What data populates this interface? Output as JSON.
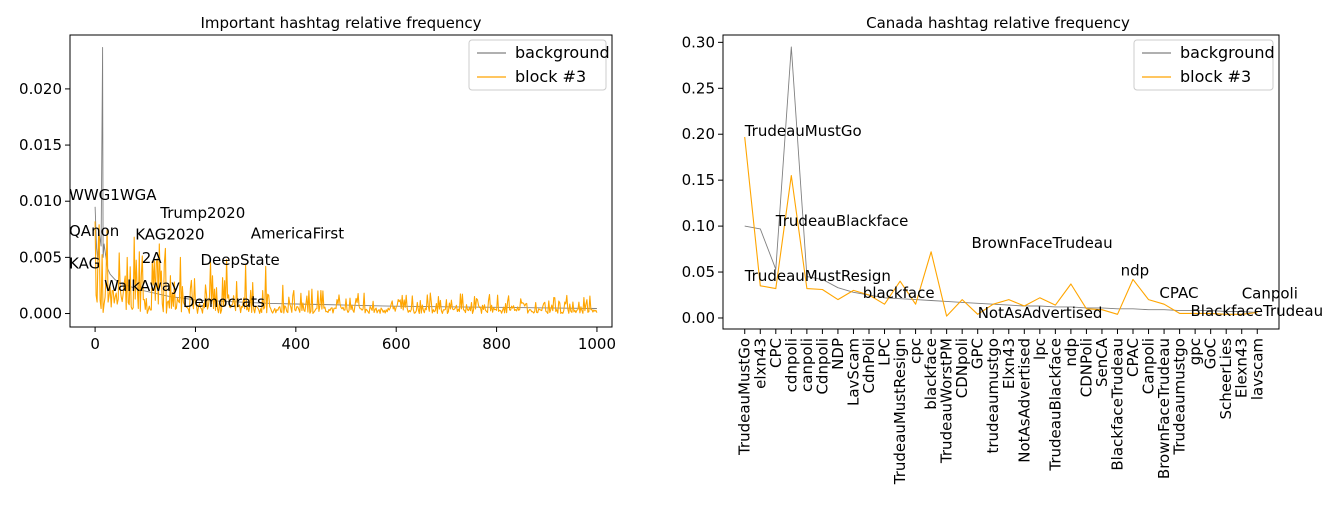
{
  "colors": {
    "background": "#808080",
    "block": "#ffa500"
  },
  "chart_data": [
    {
      "type": "line",
      "title": "Important hashtag relative frequency",
      "xlabel": "",
      "ylabel": "",
      "xlim": [
        -50,
        1030
      ],
      "ylim": [
        -0.0012,
        0.0248
      ],
      "xticks": [
        0,
        200,
        400,
        600,
        800,
        1000
      ],
      "xtick_labels": [
        "0",
        "200",
        "400",
        "600",
        "800",
        "1000"
      ],
      "yticks": [
        0.0,
        0.005,
        0.01,
        0.015,
        0.02
      ],
      "ytick_labels": [
        "0.000",
        "0.005",
        "0.010",
        "0.015",
        "0.020"
      ],
      "grid": false,
      "legend": "top-right",
      "series": [
        {
          "name": "background",
          "color": "#808080",
          "x": [
            0,
            3,
            6,
            9,
            12,
            15,
            16,
            18,
            21,
            25,
            30,
            40,
            50,
            70,
            90,
            110,
            130,
            150,
            170,
            200,
            250,
            300,
            350,
            400,
            450,
            500,
            550,
            600,
            700,
            800,
            900,
            1000
          ],
          "y": [
            0.0095,
            0.0058,
            0.0045,
            0.007,
            0.006,
            0.0237,
            0.005,
            0.0062,
            0.0052,
            0.004,
            0.0035,
            0.003,
            0.0027,
            0.0024,
            0.0021,
            0.0019,
            0.0017,
            0.0015,
            0.0014,
            0.0012,
            0.0011,
            0.001,
            0.0009,
            0.00085,
            0.0008,
            0.00075,
            0.0007,
            0.00065,
            0.0006,
            0.00055,
            0.0005,
            0.00045
          ]
        },
        {
          "name": "block #3",
          "color": "#ffa500",
          "x": [],
          "y": []
        }
      ],
      "annotations": [
        {
          "text": "WWG1WGA",
          "x": -52,
          "y": 0.0101
        },
        {
          "text": "Trump2020",
          "x": 130,
          "y": 0.0085
        },
        {
          "text": "QAnon",
          "x": -52,
          "y": 0.0069
        },
        {
          "text": "KAG2020",
          "x": 80,
          "y": 0.0066
        },
        {
          "text": "AmericaFirst",
          "x": 310,
          "y": 0.0067
        },
        {
          "text": "2A",
          "x": 93,
          "y": 0.0045
        },
        {
          "text": "DeepState",
          "x": 210,
          "y": 0.0043
        },
        {
          "text": "KAG",
          "x": -52,
          "y": 0.004
        },
        {
          "text": "WalkAway",
          "x": 18,
          "y": 0.002
        },
        {
          "text": "Democrats",
          "x": 175,
          "y": 0.0006
        }
      ]
    },
    {
      "type": "line",
      "title": "Canada hashtag relative frequency",
      "xlabel": "",
      "ylabel": "",
      "xlim": [
        -1.4,
        34.4
      ],
      "ylim": [
        -0.012,
        0.308
      ],
      "categories": [
        "TrudeauMustGo",
        "elxn43",
        "CPC",
        "cdnpoli",
        "canpoli",
        "Cdnpoli",
        "NDP",
        "LavScam",
        "CdnPoli",
        "LPC",
        "TrudeauMustResign",
        "cpc",
        "blackface",
        "TrudeauWorstPM",
        "CDNpoli",
        "GPC",
        "trudeaumustgo",
        "Elxn43",
        "NotAsAdvertised",
        "lpc",
        "TrudeauBlackface",
        "ndp",
        "CDNPoli",
        "SenCA",
        "BlackfaceTrudeau",
        "CPAC",
        "Canpoli",
        "BrownFaceTrudeau",
        "Trudeaumustgo",
        "gpc",
        "GoC",
        "ScheerLies",
        "Elexn43",
        "lavscam"
      ],
      "yticks": [
        0.0,
        0.05,
        0.1,
        0.15,
        0.2,
        0.25,
        0.3
      ],
      "ytick_labels": [
        "0.00",
        "0.05",
        "0.10",
        "0.15",
        "0.20",
        "0.25",
        "0.30"
      ],
      "grid": false,
      "legend": "top-right",
      "series": [
        {
          "name": "background",
          "color": "#808080",
          "values": [
            0.1,
            0.097,
            0.053,
            0.295,
            0.045,
            0.042,
            0.033,
            0.028,
            0.025,
            0.022,
            0.021,
            0.02,
            0.019,
            0.018,
            0.017,
            0.016,
            0.015,
            0.014,
            0.013,
            0.013,
            0.012,
            0.012,
            0.011,
            0.011,
            0.01,
            0.01,
            0.009,
            0.009,
            0.008,
            0.008,
            0.008,
            0.007,
            0.007,
            0.006
          ]
        },
        {
          "name": "block #3",
          "color": "#ffa500",
          "values": [
            0.197,
            0.035,
            0.032,
            0.155,
            0.032,
            0.031,
            0.02,
            0.03,
            0.025,
            0.015,
            0.04,
            0.015,
            0.072,
            0.002,
            0.02,
            0.004,
            0.015,
            0.02,
            0.013,
            0.022,
            0.014,
            0.037,
            0.01,
            0.009,
            0.004,
            0.042,
            0.02,
            0.015,
            0.005,
            0.005,
            0.005,
            0.004,
            0.004,
            0.006
          ]
        }
      ],
      "annotations": [
        {
          "text": "TrudeauMustGo",
          "x": 0,
          "y": 0.198
        },
        {
          "text": "TrudeauBlackface",
          "x": 2,
          "y": 0.1
        },
        {
          "text": "BrownFaceTrudeau",
          "x": 14.6,
          "y": 0.076
        },
        {
          "text": "TrudeauMustResign",
          "x": 0,
          "y": 0.04
        },
        {
          "text": "ndp",
          "x": 24.2,
          "y": 0.046
        },
        {
          "text": "CPAC",
          "x": 26.7,
          "y": 0.022
        },
        {
          "text": "Canpoli",
          "x": 32,
          "y": 0.021
        },
        {
          "text": "blackface",
          "x": 7.6,
          "y": 0.022
        },
        {
          "text": "NotAsAdvertised",
          "x": 15,
          "y": 0.0
        },
        {
          "text": "BlackfaceTrudeau",
          "x": 28.7,
          "y": 0.002
        }
      ]
    }
  ]
}
